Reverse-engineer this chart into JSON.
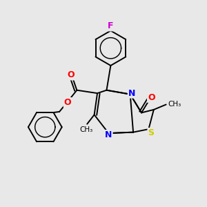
{
  "background_color": "#e8e8e8",
  "line_color": "#000000",
  "atom_colors": {
    "N": "#0000ff",
    "O": "#ff0000",
    "S": "#cccc00",
    "F": "#cc00cc"
  },
  "figsize": [
    3.0,
    3.0
  ],
  "dpi": 100
}
